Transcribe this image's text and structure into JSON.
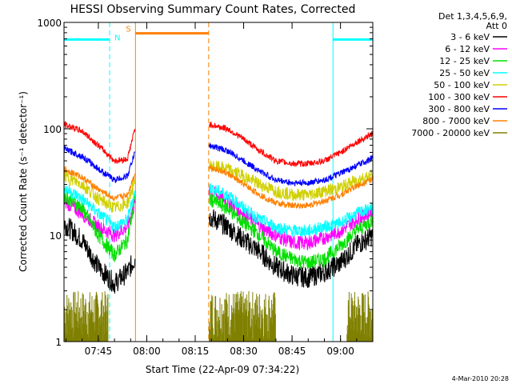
{
  "chart_data": {
    "type": "line",
    "title": "HESSI Observing Summary Count Rates, Corrected",
    "xlabel": "Start Time (22-Apr-09 07:34:22)",
    "ylabel": "Corrected Count Rate (s⁻¹ detector⁻¹)",
    "yscale": "log",
    "ylim": [
      1,
      1000
    ],
    "xlim": [
      "07:34:22",
      "09:10:00"
    ],
    "y_ticks": [
      "1",
      "10",
      "100",
      "1000"
    ],
    "x_ticks": [
      "07:45",
      "08:00",
      "08:15",
      "08:30",
      "08:45",
      "09:00"
    ],
    "footer": "4-Mar-2010 20:28",
    "legend": {
      "placement": "outside-right",
      "header": [
        "Det 1,3,4,5,6,9,",
        "Att 0"
      ],
      "entries": [
        {
          "label": "3 - 6 keV",
          "color": "#000000"
        },
        {
          "label": "6 - 12 keV",
          "color": "#ff00ff"
        },
        {
          "label": "12 - 25 keV",
          "color": "#00e000"
        },
        {
          "label": "25 - 50 keV",
          "color": "#00ffff"
        },
        {
          "label": "50 - 100 keV",
          "color": "#d0d000"
        },
        {
          "label": "100 - 300 keV",
          "color": "#ff0000"
        },
        {
          "label": "300 - 800 keV",
          "color": "#0000ff"
        },
        {
          "label": "800 - 7000 keV",
          "color": "#ff8000"
        },
        {
          "label": "7000 - 20000 keV",
          "color": "#808000"
        }
      ]
    },
    "gaps": [
      {
        "from": "07:56:30",
        "to": "08:19:10"
      }
    ],
    "series": [
      {
        "name": "3 - 6 keV",
        "color": "#000000",
        "noise": 0.1,
        "points": [
          [
            "07:34:22",
            13
          ],
          [
            "07:40:00",
            9
          ],
          [
            "07:45:00",
            5
          ],
          [
            "07:50:00",
            3.5
          ],
          [
            "07:54:00",
            4.5
          ],
          [
            "07:56:20",
            6
          ],
          [
            "08:19:20",
            15
          ],
          [
            "08:25:00",
            12
          ],
          [
            "08:30:00",
            9
          ],
          [
            "08:35:00",
            7
          ],
          [
            "08:40:00",
            5
          ],
          [
            "08:45:00",
            4.2
          ],
          [
            "08:50:00",
            4
          ],
          [
            "08:55:00",
            4.5
          ],
          [
            "09:00:00",
            5.5
          ],
          [
            "09:05:00",
            8
          ],
          [
            "09:10:00",
            10
          ]
        ]
      },
      {
        "name": "6 - 12 keV",
        "color": "#ff00ff",
        "noise": 0.07,
        "points": [
          [
            "07:34:22",
            21
          ],
          [
            "07:40:00",
            16
          ],
          [
            "07:45:00",
            12
          ],
          [
            "07:50:00",
            10
          ],
          [
            "07:54:00",
            12
          ],
          [
            "07:56:20",
            20
          ],
          [
            "08:19:20",
            26
          ],
          [
            "08:25:00",
            21
          ],
          [
            "08:30:00",
            16
          ],
          [
            "08:35:00",
            12
          ],
          [
            "08:40:00",
            10
          ],
          [
            "08:45:00",
            8.5
          ],
          [
            "08:50:00",
            8.5
          ],
          [
            "08:55:00",
            9.5
          ],
          [
            "09:00:00",
            11
          ],
          [
            "09:05:00",
            14
          ],
          [
            "09:10:00",
            17
          ]
        ]
      },
      {
        "name": "12 - 25 keV",
        "color": "#00e000",
        "noise": 0.07,
        "points": [
          [
            "07:34:22",
            24
          ],
          [
            "07:40:00",
            18
          ],
          [
            "07:45:00",
            10
          ],
          [
            "07:50:00",
            6.5
          ],
          [
            "07:54:00",
            9
          ],
          [
            "07:56:20",
            22
          ],
          [
            "08:19:20",
            22
          ],
          [
            "08:25:00",
            18
          ],
          [
            "08:30:00",
            13
          ],
          [
            "08:35:00",
            10
          ],
          [
            "08:40:00",
            7
          ],
          [
            "08:45:00",
            6
          ],
          [
            "08:50:00",
            5.5
          ],
          [
            "08:55:00",
            6
          ],
          [
            "09:00:00",
            8
          ],
          [
            "09:05:00",
            11
          ],
          [
            "09:10:00",
            14
          ]
        ]
      },
      {
        "name": "25 - 50 keV",
        "color": "#00ffff",
        "noise": 0.06,
        "points": [
          [
            "07:34:22",
            28
          ],
          [
            "07:40:00",
            22
          ],
          [
            "07:45:00",
            16
          ],
          [
            "07:50:00",
            12
          ],
          [
            "07:54:00",
            14
          ],
          [
            "07:56:20",
            26
          ],
          [
            "08:19:20",
            28
          ],
          [
            "08:25:00",
            24
          ],
          [
            "08:30:00",
            18
          ],
          [
            "08:35:00",
            14
          ],
          [
            "08:40:00",
            12
          ],
          [
            "08:45:00",
            11
          ],
          [
            "08:50:00",
            11
          ],
          [
            "08:55:00",
            12
          ],
          [
            "09:00:00",
            13
          ],
          [
            "09:05:00",
            16
          ],
          [
            "09:10:00",
            18
          ]
        ]
      },
      {
        "name": "50 - 100 keV",
        "color": "#d0d000",
        "noise": 0.06,
        "points": [
          [
            "07:34:22",
            36
          ],
          [
            "07:40:00",
            30
          ],
          [
            "07:45:00",
            22
          ],
          [
            "07:50:00",
            18
          ],
          [
            "07:54:00",
            20
          ],
          [
            "07:56:20",
            32
          ],
          [
            "08:19:20",
            45
          ],
          [
            "08:25:00",
            42
          ],
          [
            "08:30:00",
            36
          ],
          [
            "08:35:00",
            30
          ],
          [
            "08:40:00",
            26
          ],
          [
            "08:45:00",
            24
          ],
          [
            "08:50:00",
            24
          ],
          [
            "08:55:00",
            26
          ],
          [
            "09:00:00",
            28
          ],
          [
            "09:05:00",
            33
          ],
          [
            "09:10:00",
            37
          ]
        ]
      },
      {
        "name": "100 - 300 keV",
        "color": "#ff0000",
        "noise": 0.03,
        "points": [
          [
            "07:34:22",
            110
          ],
          [
            "07:40:00",
            95
          ],
          [
            "07:45:00",
            70
          ],
          [
            "07:50:00",
            50
          ],
          [
            "07:54:00",
            52
          ],
          [
            "07:56:20",
            100
          ],
          [
            "08:19:20",
            110
          ],
          [
            "08:25:00",
            100
          ],
          [
            "08:30:00",
            80
          ],
          [
            "08:35:00",
            62
          ],
          [
            "08:40:00",
            50
          ],
          [
            "08:45:00",
            47
          ],
          [
            "08:50:00",
            47
          ],
          [
            "08:55:00",
            50
          ],
          [
            "09:00:00",
            60
          ],
          [
            "09:05:00",
            75
          ],
          [
            "09:10:00",
            90
          ]
        ]
      },
      {
        "name": "300 - 800 keV",
        "color": "#0000ff",
        "noise": 0.03,
        "points": [
          [
            "07:34:22",
            65
          ],
          [
            "07:40:00",
            55
          ],
          [
            "07:45:00",
            42
          ],
          [
            "07:50:00",
            33
          ],
          [
            "07:54:00",
            36
          ],
          [
            "07:56:20",
            60
          ],
          [
            "08:19:20",
            70
          ],
          [
            "08:25:00",
            62
          ],
          [
            "08:30:00",
            50
          ],
          [
            "08:35:00",
            40
          ],
          [
            "08:40:00",
            33
          ],
          [
            "08:45:00",
            31
          ],
          [
            "08:50:00",
            31
          ],
          [
            "08:55:00",
            33
          ],
          [
            "09:00:00",
            38
          ],
          [
            "09:05:00",
            45
          ],
          [
            "09:10:00",
            53
          ]
        ]
      },
      {
        "name": "800 - 7000 keV",
        "color": "#ff8000",
        "noise": 0.03,
        "points": [
          [
            "07:34:22",
            42
          ],
          [
            "07:40:00",
            35
          ],
          [
            "07:45:00",
            27
          ],
          [
            "07:50:00",
            22
          ],
          [
            "07:54:00",
            24
          ],
          [
            "07:56:20",
            38
          ],
          [
            "08:19:20",
            44
          ],
          [
            "08:25:00",
            38
          ],
          [
            "08:30:00",
            30
          ],
          [
            "08:35:00",
            24
          ],
          [
            "08:40:00",
            20
          ],
          [
            "08:45:00",
            19
          ],
          [
            "08:50:00",
            19
          ],
          [
            "08:55:00",
            21
          ],
          [
            "09:00:00",
            24
          ],
          [
            "09:05:00",
            29
          ],
          [
            "09:10:00",
            34
          ]
        ]
      }
    ],
    "shaded_series": {
      "name": "7000 - 20000 keV",
      "color": "#808000",
      "low": 1,
      "high": 3,
      "ranges": [
        [
          "07:34:22",
          "07:48:00"
        ],
        [
          "08:19:20",
          "08:40:00"
        ],
        [
          "09:02:00",
          "09:10:00"
        ]
      ]
    },
    "annotations": [
      {
        "label": "N",
        "color": "#00ffff",
        "type": "night-marker",
        "time": "07:48:30",
        "level": 690
      },
      {
        "label": "S",
        "color": "#ff8000",
        "type": "SAA",
        "from": "07:56:30",
        "to": "08:19:10",
        "level": 790
      }
    ],
    "night_intervals": [
      [
        "07:34:22",
        "07:48:30"
      ],
      [
        "08:57:40",
        "09:10:00"
      ]
    ],
    "night_level": 690,
    "saa_interval": [
      "07:56:30",
      "08:19:10"
    ],
    "saa_level": 790,
    "colors": {
      "night": "#00ffff",
      "saa": "#ff8000",
      "axis": "#000000",
      "background": "#ffffff"
    }
  }
}
